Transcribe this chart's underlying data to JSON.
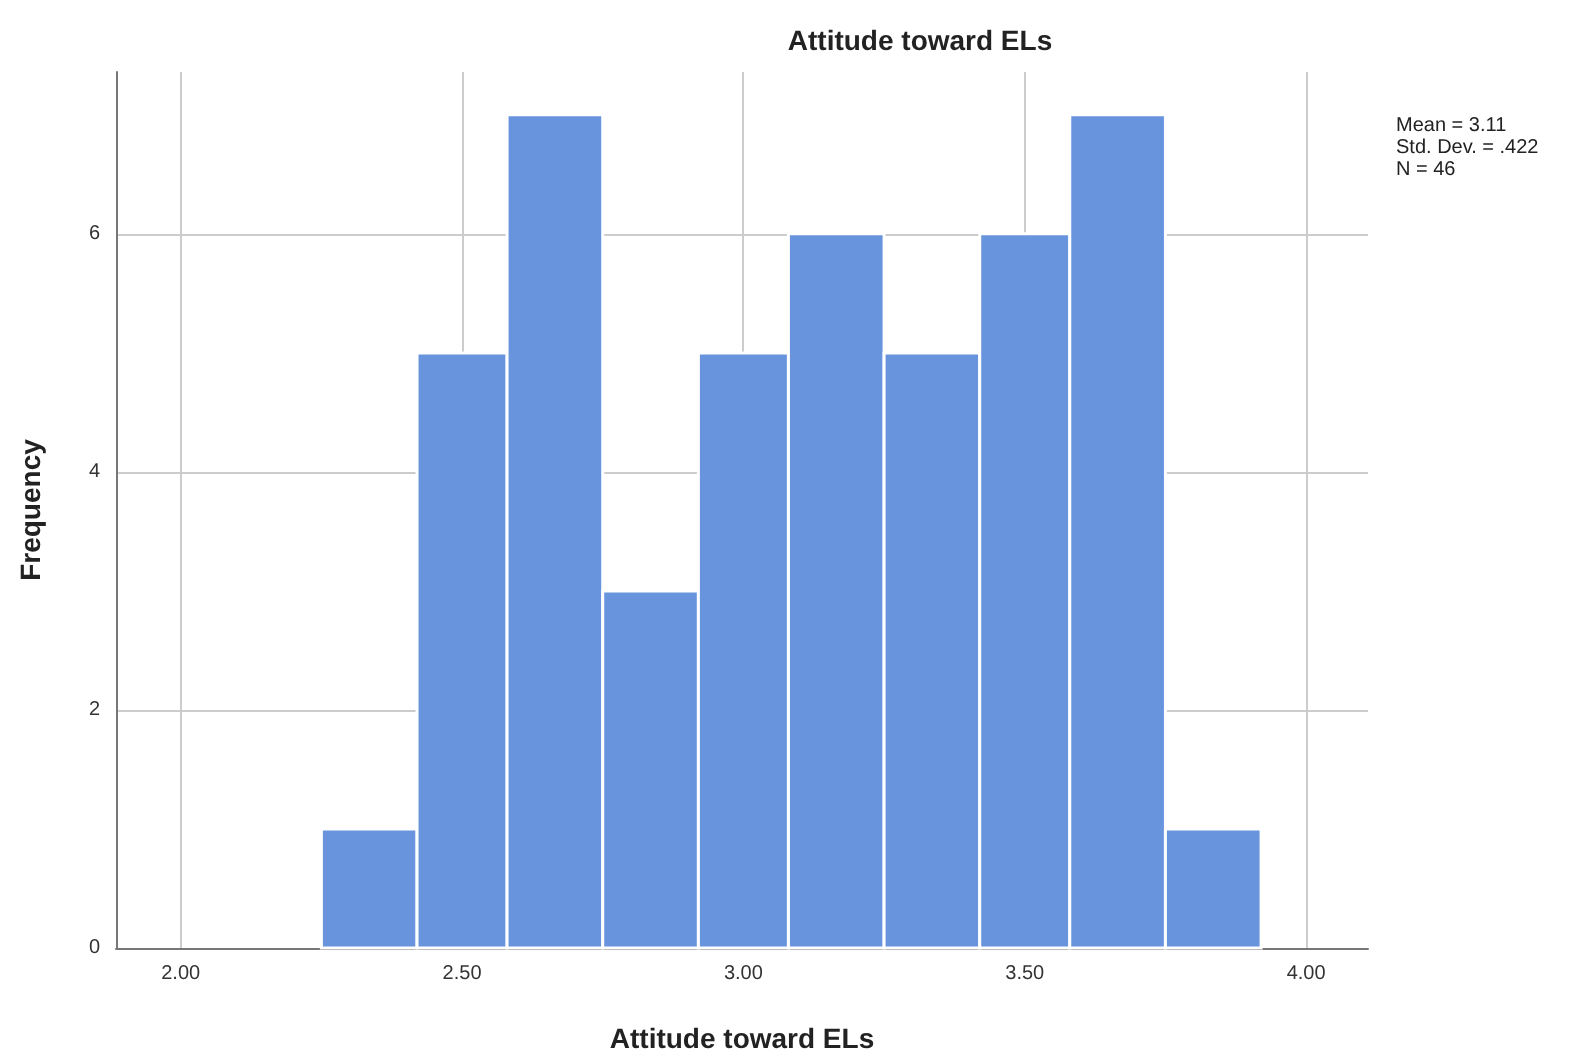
{
  "chart_data": {
    "type": "histogram",
    "title": "Attitude toward ELs",
    "xlabel": "Attitude toward ELs",
    "ylabel": "Frequency",
    "bins": [
      2.25,
      2.42,
      2.58,
      2.75,
      2.92,
      3.08,
      3.25,
      3.42,
      3.58,
      3.75,
      3.92
    ],
    "values": [
      1,
      5,
      7,
      3,
      5,
      6,
      5,
      6,
      7,
      1
    ],
    "color": "#6794dc",
    "xlim": [
      1.885,
      4.11
    ],
    "ylim": [
      0,
      7.36
    ],
    "xticks": [
      {
        "value": 2,
        "label": "2.00"
      },
      {
        "value": 2.5,
        "label": "2.50"
      },
      {
        "value": 3,
        "label": "3.00"
      },
      {
        "value": 3.5,
        "label": "3.50"
      },
      {
        "value": 4,
        "label": "4.00"
      }
    ],
    "yticks": [
      0,
      2,
      4,
      6
    ],
    "grid": true,
    "annotations": [
      "Mean = 3.11",
      "Std. Dev. = .422",
      "N = 46"
    ]
  }
}
